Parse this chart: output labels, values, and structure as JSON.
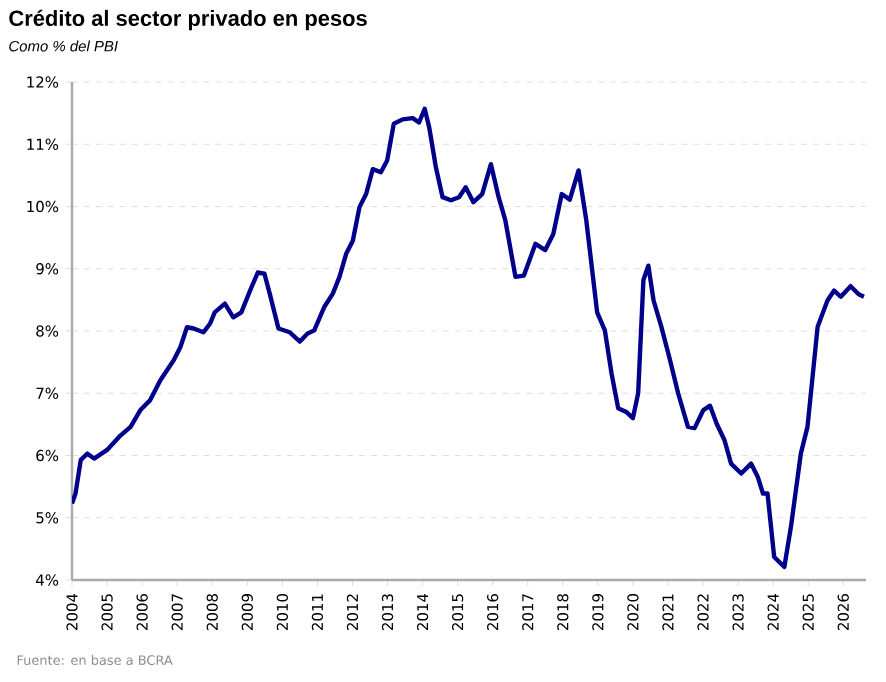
{
  "chart_data": {
    "type": "line",
    "title": "Crédito al sector privado en pesos",
    "subtitle": "Como % del PBI",
    "annotations": [
      "Fuente: en base a BCRA"
    ],
    "series": [
      {
        "color": "#00008b",
        "x": [
          2004.0,
          2004.1,
          2004.25,
          2004.44,
          2004.63,
          2005.0,
          2005.38,
          2005.67,
          2005.95,
          2006.23,
          2006.52,
          2006.9,
          2007.09,
          2007.28,
          2007.47,
          2007.75,
          2007.94,
          2008.07,
          2008.36,
          2008.6,
          2008.83,
          2009.08,
          2009.3,
          2009.49,
          2009.64,
          2009.89,
          2010.21,
          2010.5,
          2010.72,
          2010.91,
          2011.2,
          2011.44,
          2011.63,
          2011.82,
          2012.01,
          2012.2,
          2012.39,
          2012.58,
          2012.81,
          2012.99,
          2013.18,
          2013.43,
          2013.72,
          2013.9,
          2014.06,
          2014.19,
          2014.38,
          2014.57,
          2014.81,
          2015.04,
          2015.23,
          2015.45,
          2015.7,
          2015.95,
          2016.17,
          2016.36,
          2016.65,
          2016.89,
          2017.22,
          2017.5,
          2017.73,
          2017.97,
          2018.2,
          2018.45,
          2018.67,
          2018.98,
          2019.2,
          2019.39,
          2019.58,
          2019.81,
          2020.0,
          2020.15,
          2020.3,
          2020.44,
          2020.59,
          2020.81,
          2021.06,
          2021.29,
          2021.57,
          2021.76,
          2022.01,
          2022.2,
          2022.39,
          2022.61,
          2022.8,
          2023.09,
          2023.37,
          2023.56,
          2023.71,
          2023.84,
          2024.03,
          2024.32,
          2024.51,
          2024.79,
          2024.98,
          2025.27,
          2025.55,
          2025.74,
          2025.93,
          2026.21,
          2026.44,
          2026.59
        ],
        "values": [
          5.23,
          5.39,
          5.93,
          6.03,
          5.95,
          6.09,
          6.32,
          6.46,
          6.73,
          6.89,
          7.21,
          7.53,
          7.74,
          8.06,
          8.04,
          7.98,
          8.12,
          8.3,
          8.44,
          8.22,
          8.3,
          8.65,
          8.94,
          8.92,
          8.6,
          8.04,
          7.98,
          7.83,
          7.96,
          8.01,
          8.39,
          8.6,
          8.87,
          9.24,
          9.45,
          9.99,
          10.2,
          10.6,
          10.55,
          10.74,
          11.33,
          11.4,
          11.42,
          11.35,
          11.57,
          11.27,
          10.63,
          10.15,
          10.1,
          10.15,
          10.31,
          10.07,
          10.2,
          10.68,
          10.15,
          9.78,
          8.87,
          8.89,
          9.4,
          9.3,
          9.56,
          10.2,
          10.11,
          10.58,
          9.78,
          8.3,
          8.01,
          7.32,
          6.76,
          6.7,
          6.6,
          7.0,
          8.82,
          9.05,
          8.49,
          8.07,
          7.53,
          7.0,
          6.46,
          6.44,
          6.73,
          6.8,
          6.51,
          6.25,
          5.87,
          5.71,
          5.87,
          5.66,
          5.39,
          5.39,
          4.37,
          4.21,
          4.86,
          6.03,
          6.46,
          8.07,
          8.49,
          8.65,
          8.55,
          8.72,
          8.59,
          8.55
        ]
      }
    ],
    "xlim": [
      2004,
      2026.65
    ],
    "xticks": [
      2004,
      2005,
      2006,
      2007,
      2008,
      2009,
      2010,
      2011,
      2012,
      2013,
      2014,
      2015,
      2016,
      2017,
      2018,
      2019,
      2020,
      2021,
      2022,
      2023,
      2024,
      2025,
      2026
    ],
    "ylim": [
      4,
      12
    ],
    "yticks": [
      {
        "value": 4,
        "label": "4%"
      },
      {
        "value": 5,
        "label": "5%"
      },
      {
        "value": 6,
        "label": "6%"
      },
      {
        "value": 7,
        "label": "7%"
      },
      {
        "value": 8,
        "label": "8%"
      },
      {
        "value": 9,
        "label": "9%"
      },
      {
        "value": 10,
        "label": "10%"
      },
      {
        "value": 11,
        "label": "11%"
      },
      {
        "value": 12,
        "label": "12%"
      }
    ],
    "grid": "y",
    "legend": false,
    "marker": "none",
    "line_style": "solid"
  }
}
